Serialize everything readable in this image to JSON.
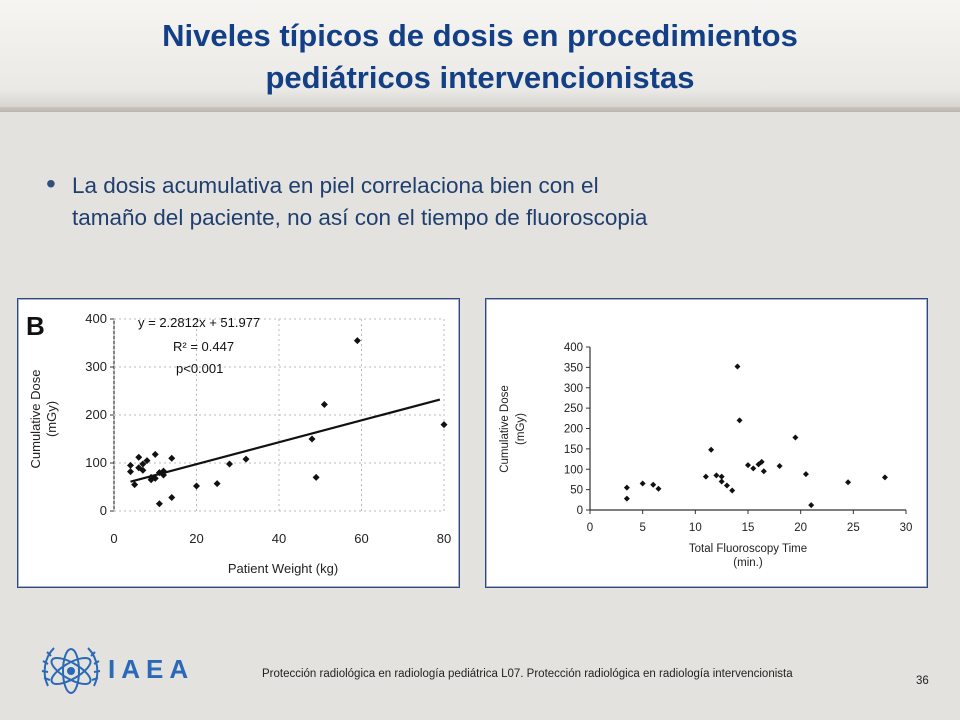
{
  "title": {
    "line1": "Niveles típicos de dosis en procedimientos",
    "line2": "pediátricos intervencionistas"
  },
  "bullet": {
    "line1": "La dosis acumulativa en piel correlaciona bien con el",
    "line2": "tamaño del paciente, no así con el tiempo de fluoroscopia"
  },
  "footer": {
    "logo_text": "IAEA",
    "text": "Protección radiológica en radiología pediátrica   L07. Protección radiológica en radiología intervencionista",
    "page_number": "36"
  },
  "colors": {
    "title": "#123f86",
    "logo": "#2a68b8",
    "marker": "#111111"
  },
  "chart_data": [
    {
      "type": "scatter",
      "panel_label": "B",
      "xlabel": "Patient Weight (kg)",
      "ylabel": "Cumulative Dose",
      "ylabel_unit": "(mGy)",
      "xlim": [
        0,
        80
      ],
      "ylim": [
        0,
        400
      ],
      "xticks": [
        0,
        20,
        40,
        60,
        80
      ],
      "yticks": [
        0,
        100,
        200,
        300,
        400
      ],
      "annotations": [
        "y = 2.2812x + 51.977",
        "R² = 0.447",
        "p<0.001"
      ],
      "trendline": {
        "slope": 2.2812,
        "intercept": 51.977,
        "x_range": [
          4,
          79
        ]
      },
      "points": [
        [
          4,
          95
        ],
        [
          4,
          82
        ],
        [
          5,
          55
        ],
        [
          6,
          112
        ],
        [
          6,
          90
        ],
        [
          7,
          85
        ],
        [
          7,
          98
        ],
        [
          8,
          105
        ],
        [
          9,
          65
        ],
        [
          9,
          70
        ],
        [
          10,
          68
        ],
        [
          10,
          118
        ],
        [
          11,
          80
        ],
        [
          11,
          15
        ],
        [
          12,
          83
        ],
        [
          12,
          75
        ],
        [
          14,
          110
        ],
        [
          14,
          28
        ],
        [
          20,
          52
        ],
        [
          25,
          57
        ],
        [
          28,
          98
        ],
        [
          32,
          108
        ],
        [
          48,
          150
        ],
        [
          49,
          70
        ],
        [
          51,
          222
        ],
        [
          59,
          355
        ],
        [
          80,
          180
        ]
      ]
    },
    {
      "type": "scatter",
      "xlabel": "Total Fluoroscopy Time",
      "xlabel_unit": "(min.)",
      "ylabel": "Cumulative Dose",
      "ylabel_unit": "(mGy)",
      "xlim": [
        0,
        30
      ],
      "ylim": [
        0,
        400
      ],
      "xticks": [
        0,
        5,
        10,
        15,
        20,
        25,
        30
      ],
      "yticks": [
        0,
        50,
        100,
        150,
        200,
        250,
        300,
        350,
        400
      ],
      "points": [
        [
          3.5,
          55
        ],
        [
          3.5,
          28
        ],
        [
          5,
          65
        ],
        [
          6,
          62
        ],
        [
          6.5,
          52
        ],
        [
          11,
          82
        ],
        [
          11.5,
          148
        ],
        [
          12,
          85
        ],
        [
          12.5,
          70
        ],
        [
          12.5,
          82
        ],
        [
          13,
          60
        ],
        [
          13.5,
          48
        ],
        [
          14,
          352
        ],
        [
          14.2,
          220
        ],
        [
          15,
          110
        ],
        [
          15.5,
          102
        ],
        [
          16,
          112
        ],
        [
          16.3,
          118
        ],
        [
          16.5,
          95
        ],
        [
          18,
          108
        ],
        [
          19.5,
          178
        ],
        [
          20.5,
          88
        ],
        [
          21,
          12
        ],
        [
          24.5,
          68
        ],
        [
          28,
          80
        ]
      ]
    }
  ]
}
